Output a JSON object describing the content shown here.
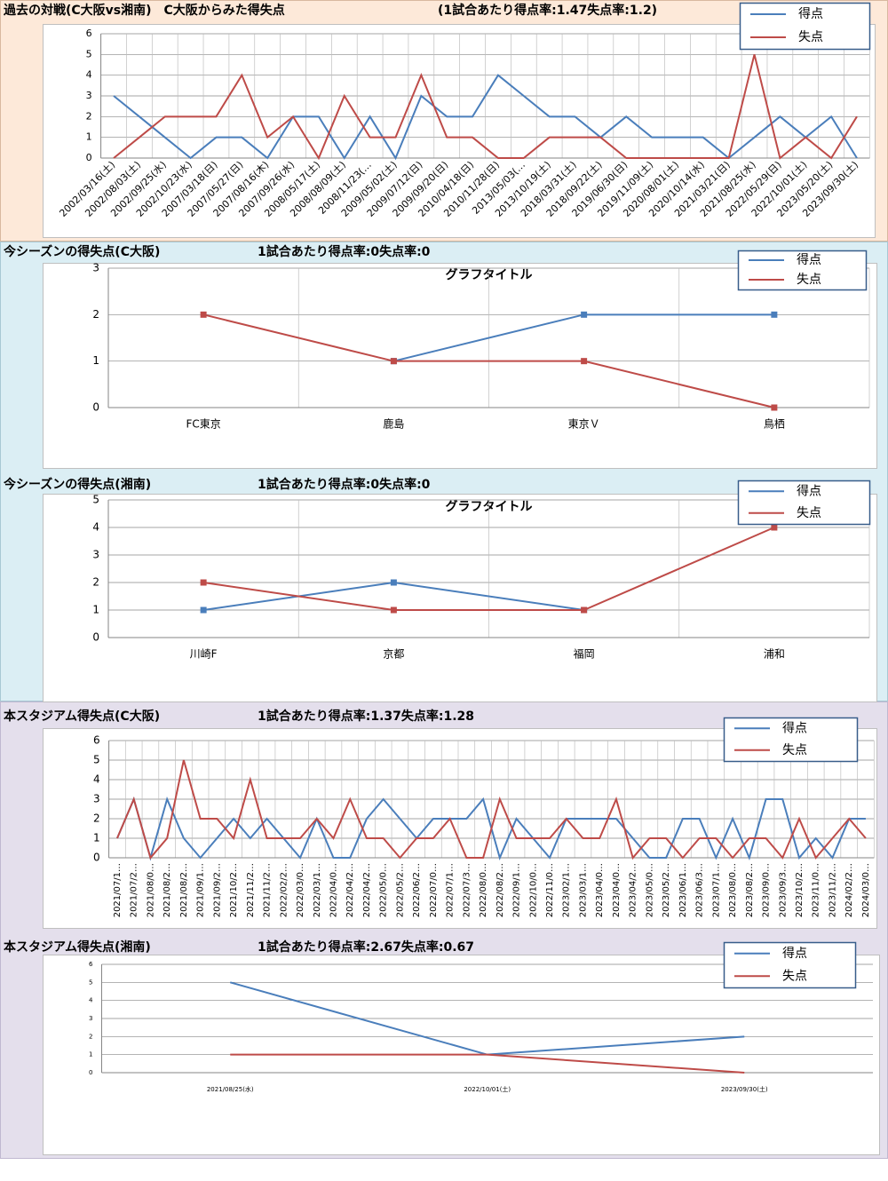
{
  "chart_data": [
    {
      "type": "line",
      "title": "過去の対戦(C大阪vs湘南)　C大阪からみた得失点",
      "subtitle": "(1試合あたり得点率:1.47失点率:1.2)",
      "categories": [
        "2002/03/16(土)",
        "2002/08/03(土)",
        "2002/09/25(水)",
        "2002/10/23(水)",
        "2007/03/18(日)",
        "2007/05/27(日)",
        "2007/08/16(木)",
        "2007/09/26(水)",
        "2008/05/17(土)",
        "2008/08/09(土)",
        "2008/11/23(…",
        "2009/05/02(土)",
        "2009/07/12(日)",
        "2009/09/20(日)",
        "2010/04/18(日)",
        "2010/11/28(日)",
        "2013/05/03(…",
        "2013/10/19(土)",
        "2018/03/31(土)",
        "2018/09/22(土)",
        "2019/06/30(日)",
        "2019/11/09(土)",
        "2020/08/01(土)",
        "2020/10/14(水)",
        "2021/03/21(日)",
        "2021/08/25(水)",
        "2022/05/29(日)",
        "2022/10/01(土)",
        "2023/05/20(土)",
        "2023/09/30(土)"
      ],
      "series": [
        {
          "name": "得点",
          "color": "#4a7ebb",
          "values": [
            3,
            2,
            1,
            0,
            1,
            1,
            0,
            2,
            2,
            0,
            2,
            0,
            3,
            2,
            2,
            4,
            3,
            2,
            2,
            1,
            2,
            1,
            1,
            1,
            0,
            1,
            2,
            1,
            2,
            0
          ]
        },
        {
          "name": "失点",
          "color": "#be4b48",
          "values": [
            0,
            1,
            2,
            2,
            2,
            4,
            1,
            2,
            0,
            3,
            1,
            1,
            4,
            1,
            1,
            0,
            0,
            1,
            1,
            1,
            0,
            0,
            0,
            0,
            0,
            5,
            0,
            1,
            0,
            2
          ]
        }
      ],
      "ylim": [
        0,
        6
      ],
      "yticks": [
        0,
        1,
        2,
        3,
        4,
        5,
        6
      ],
      "grid": true,
      "xgrid": true,
      "markers": false,
      "legend": "upper right"
    },
    {
      "type": "line",
      "title": "今シーズンの得失点(C大阪)",
      "subtitle": "1試合あたり得点率:0失点率:0",
      "plot_title": "グラフタイトル",
      "categories": [
        "FC東京",
        "鹿島",
        "東京Ｖ",
        "鳥栖"
      ],
      "series": [
        {
          "name": "得点",
          "color": "#4a7ebb",
          "values": [
            null,
            1,
            2,
            2
          ]
        },
        {
          "name": "失点",
          "color": "#be4b48",
          "values": [
            2,
            1,
            1,
            0
          ]
        }
      ],
      "ylim": [
        0,
        3
      ],
      "yticks": [
        0,
        1,
        2,
        3
      ],
      "grid": true,
      "xgrid": true,
      "markers": true,
      "legend": "upper right"
    },
    {
      "type": "line",
      "title": "今シーズンの得失点(湘南)",
      "subtitle": "1試合あたり得点率:0失点率:0",
      "plot_title": "グラフタイトル",
      "categories": [
        "川崎F",
        "京都",
        "福岡",
        "浦和"
      ],
      "series": [
        {
          "name": "得点",
          "color": "#4a7ebb",
          "values": [
            1,
            2,
            1,
            null
          ]
        },
        {
          "name": "失点",
          "color": "#be4b48",
          "values": [
            2,
            1,
            1,
            4
          ]
        }
      ],
      "ylim": [
        0,
        5
      ],
      "yticks": [
        0,
        1,
        2,
        3,
        4,
        5
      ],
      "grid": true,
      "xgrid": true,
      "markers": true,
      "legend": "upper right"
    },
    {
      "type": "line",
      "title": "本スタジアム得失点(C大阪)",
      "subtitle": "1試合あたり得点率:1.37失点率:1.28",
      "categories": [
        "2021/07/1…",
        "2021/07/2…",
        "2021/08/0…",
        "2021/08/2…",
        "2021/08/2…",
        "2021/09/1…",
        "2021/09/2…",
        "2021/10/2…",
        "2021/11/2…",
        "2021/11/2…",
        "2022/02/2…",
        "2022/03/0…",
        "2022/03/1…",
        "2022/04/0…",
        "2022/04/2…",
        "2022/04/2…",
        "2022/05/0…",
        "2022/05/2…",
        "2022/06/2…",
        "2022/07/0…",
        "2022/07/1…",
        "2022/07/3…",
        "2022/08/0…",
        "2022/08/2…",
        "2022/09/1…",
        "2022/10/0…",
        "2022/11/0…",
        "2023/02/1…",
        "2023/03/1…",
        "2023/04/0…",
        "2023/04/0…",
        "2023/04/2…",
        "2023/05/0…",
        "2023/05/2…",
        "2023/06/1…",
        "2023/06/3…",
        "2023/07/1…",
        "2023/08/0…",
        "2023/08/2…",
        "2023/09/0…",
        "2023/09/3…",
        "2023/10/2…",
        "2023/11/0…",
        "2023/11/2…",
        "2024/02/2…",
        "2024/03/0…"
      ],
      "series": [
        {
          "name": "得点",
          "color": "#4a7ebb",
          "values": [
            1,
            3,
            0,
            3,
            1,
            0,
            1,
            2,
            1,
            2,
            1,
            0,
            2,
            0,
            0,
            2,
            3,
            2,
            1,
            2,
            2,
            2,
            3,
            0,
            2,
            1,
            0,
            2,
            2,
            2,
            2,
            1,
            0,
            0,
            2,
            2,
            0,
            2,
            0,
            3,
            3,
            0,
            1,
            0,
            2,
            2
          ]
        },
        {
          "name": "失点",
          "color": "#be4b48",
          "values": [
            1,
            3,
            0,
            1,
            5,
            2,
            2,
            1,
            4,
            1,
            1,
            1,
            2,
            1,
            3,
            1,
            1,
            0,
            1,
            1,
            2,
            0,
            0,
            3,
            1,
            1,
            1,
            2,
            1,
            1,
            3,
            0,
            1,
            1,
            0,
            1,
            1,
            0,
            1,
            1,
            0,
            2,
            0,
            1,
            2,
            1
          ]
        }
      ],
      "ylim": [
        0,
        6
      ],
      "yticks": [
        0,
        1,
        2,
        3,
        4,
        5,
        6
      ],
      "grid": true,
      "xgrid": true,
      "markers": false,
      "legend": "upper right"
    },
    {
      "type": "line",
      "title": "本スタジアム得失点(湘南)",
      "subtitle": "1試合あたり得点率:2.67失点率:0.67",
      "categories": [
        "2021/08/25(水)",
        "2022/10/01(土)",
        "2023/09/30(土)"
      ],
      "series": [
        {
          "name": "得点",
          "color": "#4a7ebb",
          "values": [
            5,
            1,
            2
          ]
        },
        {
          "name": "失点",
          "color": "#be4b48",
          "values": [
            1,
            1,
            0
          ]
        }
      ],
      "ylim": [
        0,
        6
      ],
      "yticks": [
        0,
        1,
        2,
        3,
        4,
        5,
        6
      ],
      "grid": true,
      "xgrid": false,
      "markers": false,
      "legend": "upper right"
    }
  ]
}
